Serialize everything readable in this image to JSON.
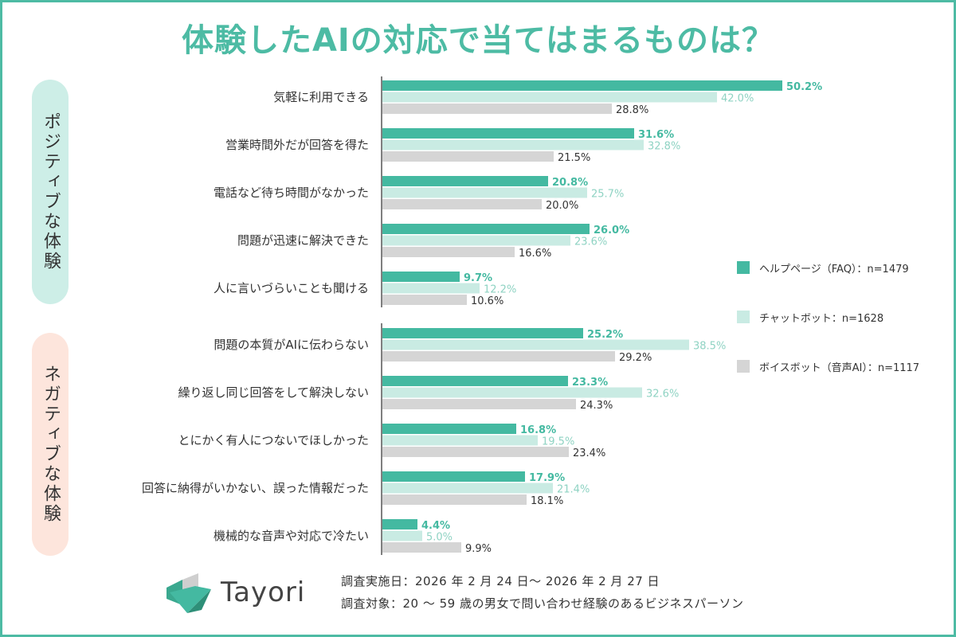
{
  "title": "体験したAIの対応で当てはまるものは？",
  "categories_groups": {
    "positive": "ポジティブな体験",
    "negative": "ネガティブな体験"
  },
  "colors": {
    "help": "#44b9a1",
    "chat": "#c9ebe3",
    "voice": "#d5d5d5",
    "help_label": "#44b9a1",
    "chat_label": "#8fd3c3",
    "voice_label": "#333333",
    "border": "#4dbba4"
  },
  "legend": [
    {
      "label": "ヘルプページ（FAQ）：n=1479",
      "color": "#44b9a1"
    },
    {
      "label": "チャットボット：n=1628",
      "color": "#c9ebe3"
    },
    {
      "label": "ボイスボット（音声AI）：n=1117",
      "color": "#d5d5d5"
    }
  ],
  "chart_data": {
    "type": "bar",
    "orientation": "horizontal",
    "categories": [
      "気軽に利用できる",
      "営業時間外だが回答を得た",
      "電話など待ち時間がなかった",
      "問題が迅速に解決できた",
      "人に言いづらいことも聞ける",
      "問題の本質がAIに伝わらない",
      "繰り返し同じ回答をして解決しない",
      "とにかく有人につないでほしかった",
      "回答に納得がいかない、誤った情報だった",
      "機械的な音声や対応で冷たい"
    ],
    "series": [
      {
        "name": "ヘルプページ（FAQ）：n=1479",
        "values": [
          50.2,
          31.6,
          20.8,
          26.0,
          9.7,
          25.2,
          23.3,
          16.8,
          17.9,
          4.4
        ]
      },
      {
        "name": "チャットボット：n=1628",
        "values": [
          42.0,
          32.8,
          25.7,
          23.6,
          12.2,
          38.5,
          32.6,
          19.5,
          21.4,
          5.0
        ]
      },
      {
        "name": "ボイスボット（音声AI）：n=1117",
        "values": [
          28.8,
          21.5,
          20.0,
          16.6,
          10.6,
          29.2,
          24.3,
          23.4,
          18.1,
          9.9
        ]
      }
    ],
    "value_suffix": "%"
  },
  "footer": {
    "brand": "Tayori",
    "survey_period": "調査実施日：2026 年 2 月 24 日～ 2026 年 2 月 27 日",
    "survey_target": "調査対象：20 ～ 59 歳の男女で問い合わせ経験のあるビジネスパーソン"
  }
}
